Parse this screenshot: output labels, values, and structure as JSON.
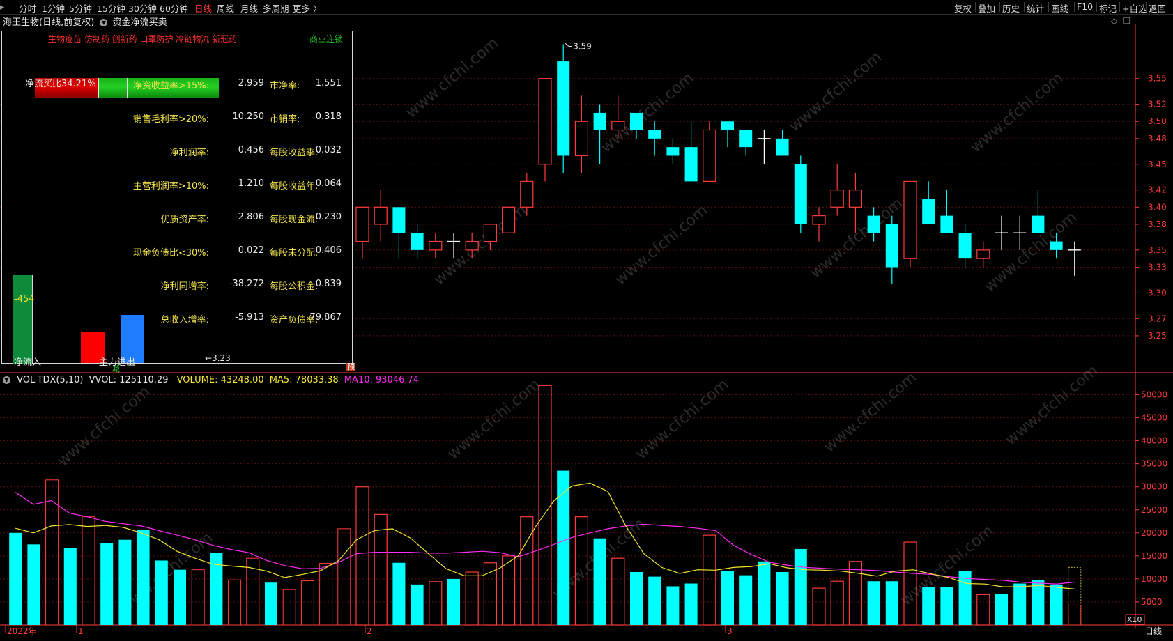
{
  "toolbar": {
    "left_tabs": [
      "分时",
      "1分钟",
      "5分钟",
      "15分钟",
      "30分钟",
      "60分钟",
      "日线",
      "周线",
      "月线",
      "多周期",
      "更多 〉"
    ],
    "active_tab": "日线",
    "right_tabs": [
      "复权",
      "叠加",
      "历史",
      "统计",
      "画线",
      "F10",
      "标记",
      "+自选",
      "返回"
    ]
  },
  "header": {
    "stock_title": "海王生物(日线,前复权)",
    "indicator_name": "资金净流买卖"
  },
  "colors": {
    "up": "#ff3b3b",
    "down": "#00ffff",
    "ma5": "#f5e52d",
    "ma10": "#ff2bf0",
    "axis": "#ff3b3b",
    "label_yellow": "#f1e24d"
  },
  "overlay": {
    "concepts": "生物疫苗 仿制药 创新药 口罩防护 冷链物流 新冠药",
    "commerce_tag": "商业连锁",
    "net_buy_ratio": "净流买比34.21%",
    "net_buy_ratio_value": 0.3421,
    "rows": [
      {
        "label": "净资收益率>15%:",
        "value": "2.959",
        "label2": "市净率:",
        "value2": "1.551"
      },
      {
        "label": "销售毛利率>20%:",
        "value": "10.250",
        "label2": "市销率:",
        "value2": "0.318"
      },
      {
        "label": "净利润率:",
        "value": "0.456",
        "label2": "每股收益季:",
        "value2": "0.032"
      },
      {
        "label": "主营利润率>10%:",
        "value": "1.210",
        "label2": "每股收益年:",
        "value2": "0.064"
      },
      {
        "label": "优质资产率:",
        "value": "-2.806",
        "label2": "每股现金流:",
        "value2": "0.230"
      },
      {
        "label": "现金负债比<30%:",
        "value": "0.022",
        "label2": "每股未分配:",
        "value2": "0.406"
      },
      {
        "label": "净利同增率:",
        "value": "-38.272",
        "label2": "每股公积金:",
        "value2": "0.839"
      },
      {
        "label": "总收入增率:",
        "value": "-5.913",
        "label2": "资产负债率:",
        "value2": "79.867"
      }
    ],
    "net_inflow_value": "-454",
    "net_inflow_label": "净流入",
    "main_force_label": "主力进出",
    "reduce_label": "减",
    "pre_label": "预",
    "low_marker": "←3.23"
  },
  "volume_header": {
    "name": "VOL-TDX(5,10)",
    "vvol": "VVOL: 125110.29",
    "volume": "VOLUME: 43248.00",
    "ma5": "MA5: 78033.38",
    "ma10": "MA10: 93046.74"
  },
  "price_axis": [
    "3.55",
    "3.52",
    "3.50",
    "3.48",
    "3.45",
    "3.42",
    "3.40",
    "3.38",
    "3.35",
    "3.33",
    "3.30",
    "3.27",
    "3.25"
  ],
  "volume_axis": [
    "50000",
    "45000",
    "40000",
    "35000",
    "30000",
    "25000",
    "20000",
    "15000",
    "10000",
    "5000"
  ],
  "volume_axis_unit": "X10",
  "high_marker": "3.59",
  "date_labels": [
    "2022年",
    "1",
    "2",
    "3"
  ],
  "period_label": "日线",
  "watermark": "www.cfchi.com",
  "chart_data": {
    "type": "candlestick",
    "price_ylim": [
      3.215,
      3.605
    ],
    "volume_ylim": [
      0,
      52500
    ],
    "candles": [
      {
        "o": 3.36,
        "h": 3.4,
        "l": 3.34,
        "c": 3.4,
        "v": 30000
      },
      {
        "o": 3.38,
        "h": 3.42,
        "l": 3.36,
        "c": 3.4,
        "v": 24000
      },
      {
        "o": 3.4,
        "h": 3.4,
        "l": 3.34,
        "c": 3.37,
        "v": 13500
      },
      {
        "o": 3.37,
        "h": 3.38,
        "l": 3.34,
        "c": 3.35,
        "v": 8800
      },
      {
        "o": 3.35,
        "h": 3.37,
        "l": 3.34,
        "c": 3.36,
        "v": 9400
      },
      {
        "o": 3.36,
        "h": 3.37,
        "l": 3.34,
        "c": 3.36,
        "v": 10000
      },
      {
        "o": 3.35,
        "h": 3.37,
        "l": 3.34,
        "c": 3.36,
        "v": 11500
      },
      {
        "o": 3.36,
        "h": 3.38,
        "l": 3.35,
        "c": 3.38,
        "v": 13500
      },
      {
        "o": 3.37,
        "h": 3.4,
        "l": 3.37,
        "c": 3.4,
        "v": 15000
      },
      {
        "o": 3.4,
        "h": 3.44,
        "l": 3.39,
        "c": 3.43,
        "v": 23500
      },
      {
        "o": 3.45,
        "h": 3.55,
        "l": 3.43,
        "c": 3.55,
        "v": 52000
      },
      {
        "o": 3.57,
        "h": 3.59,
        "l": 3.44,
        "c": 3.46,
        "v": 33500
      },
      {
        "o": 3.46,
        "h": 3.53,
        "l": 3.44,
        "c": 3.5,
        "v": 23500
      },
      {
        "o": 3.51,
        "h": 3.52,
        "l": 3.45,
        "c": 3.49,
        "v": 18800
      },
      {
        "o": 3.49,
        "h": 3.53,
        "l": 3.48,
        "c": 3.5,
        "v": 14500
      },
      {
        "o": 3.51,
        "h": 3.51,
        "l": 3.48,
        "c": 3.49,
        "v": 11500
      },
      {
        "o": 3.49,
        "h": 3.5,
        "l": 3.46,
        "c": 3.48,
        "v": 10500
      },
      {
        "o": 3.47,
        "h": 3.48,
        "l": 3.45,
        "c": 3.46,
        "v": 8400
      },
      {
        "o": 3.47,
        "h": 3.5,
        "l": 3.43,
        "c": 3.43,
        "v": 9000
      },
      {
        "o": 3.43,
        "h": 3.5,
        "l": 3.43,
        "c": 3.49,
        "v": 19500
      },
      {
        "o": 3.5,
        "h": 3.5,
        "l": 3.47,
        "c": 3.49,
        "v": 11800
      },
      {
        "o": 3.49,
        "h": 3.49,
        "l": 3.46,
        "c": 3.47,
        "v": 10800
      },
      {
        "o": 3.48,
        "h": 3.49,
        "l": 3.45,
        "c": 3.48,
        "v": 13800
      },
      {
        "o": 3.48,
        "h": 3.49,
        "l": 3.46,
        "c": 3.46,
        "v": 11500
      },
      {
        "o": 3.45,
        "h": 3.46,
        "l": 3.37,
        "c": 3.38,
        "v": 16500
      },
      {
        "o": 3.38,
        "h": 3.4,
        "l": 3.36,
        "c": 3.39,
        "v": 8000
      },
      {
        "o": 3.4,
        "h": 3.45,
        "l": 3.39,
        "c": 3.42,
        "v": 9500
      },
      {
        "o": 3.4,
        "h": 3.44,
        "l": 3.37,
        "c": 3.42,
        "v": 13800
      },
      {
        "o": 3.39,
        "h": 3.4,
        "l": 3.36,
        "c": 3.37,
        "v": 9500
      },
      {
        "o": 3.38,
        "h": 3.39,
        "l": 3.31,
        "c": 3.33,
        "v": 9500
      },
      {
        "o": 3.34,
        "h": 3.43,
        "l": 3.33,
        "c": 3.43,
        "v": 18000
      },
      {
        "o": 3.41,
        "h": 3.43,
        "l": 3.38,
        "c": 3.38,
        "v": 8300
      },
      {
        "o": 3.39,
        "h": 3.42,
        "l": 3.37,
        "c": 3.37,
        "v": 8300
      },
      {
        "o": 3.37,
        "h": 3.38,
        "l": 3.33,
        "c": 3.34,
        "v": 11800
      },
      {
        "o": 3.34,
        "h": 3.36,
        "l": 3.33,
        "c": 3.35,
        "v": 6600
      },
      {
        "o": 3.37,
        "h": 3.39,
        "l": 3.35,
        "c": 3.37,
        "v": 6800
      },
      {
        "o": 3.37,
        "h": 3.39,
        "l": 3.35,
        "c": 3.37,
        "v": 9000
      },
      {
        "o": 3.39,
        "h": 3.42,
        "l": 3.37,
        "c": 3.37,
        "v": 9700
      },
      {
        "o": 3.36,
        "h": 3.37,
        "l": 3.34,
        "c": 3.35,
        "v": 8800
      },
      {
        "o": 3.35,
        "h": 3.36,
        "l": 3.32,
        "c": 3.35,
        "v": 4325
      }
    ],
    "pre_volumes": [
      {
        "v": 20000,
        "up": false
      },
      {
        "v": 17500,
        "up": false
      },
      {
        "v": 31500,
        "up": true
      },
      {
        "v": 16700,
        "up": false
      },
      {
        "v": 23500,
        "up": true
      },
      {
        "v": 17800,
        "up": false
      },
      {
        "v": 18500,
        "up": false
      },
      {
        "v": 20700,
        "up": false
      },
      {
        "v": 14000,
        "up": false
      },
      {
        "v": 12000,
        "up": false
      },
      {
        "v": 12000,
        "up": true
      },
      {
        "v": 15700,
        "up": false
      },
      {
        "v": 9800,
        "up": true
      },
      {
        "v": 14500,
        "up": true
      },
      {
        "v": 9200,
        "up": false
      },
      {
        "v": 7700,
        "up": true
      },
      {
        "v": 9600,
        "up": true
      },
      {
        "v": 13400,
        "up": true
      },
      {
        "v": 20900,
        "up": true
      }
    ],
    "ma5": [
      21000,
      20000,
      21500,
      21800,
      21400,
      21600,
      21200,
      20000,
      18500,
      16000,
      14500,
      13200,
      12800,
      12500,
      11700,
      10300,
      11000,
      11800,
      14000,
      18500,
      20500,
      20900,
      18900,
      15500,
      12200,
      10700,
      10700,
      12400,
      15000,
      21500,
      27000,
      30200,
      30800,
      29000,
      21500,
      15500,
      12500,
      11200,
      12000,
      11900,
      12500,
      12700,
      13300,
      12400,
      12000,
      11900,
      11700,
      11200,
      10600,
      11700,
      12000,
      11100,
      10300,
      9000,
      8900,
      8300,
      8300,
      8600,
      8200,
      7800
    ],
    "ma10": [
      28800,
      26200,
      27000,
      24300,
      23500,
      22500,
      22000,
      21500,
      20500,
      19500,
      18500,
      17300,
      16400,
      15700,
      14000,
      12900,
      12200,
      12300,
      13600,
      15500,
      15800,
      15800,
      15800,
      15600,
      15600,
      15800,
      16000,
      15700,
      14800,
      16100,
      17500,
      19000,
      20000,
      20900,
      21500,
      21900,
      21600,
      21400,
      21000,
      20500,
      17300,
      15300,
      13600,
      13000,
      12500,
      12300,
      12100,
      12000,
      11800,
      11500,
      11200,
      11000,
      10500,
      10100,
      9900,
      9700,
      9300,
      9100,
      8900,
      9300
    ]
  }
}
